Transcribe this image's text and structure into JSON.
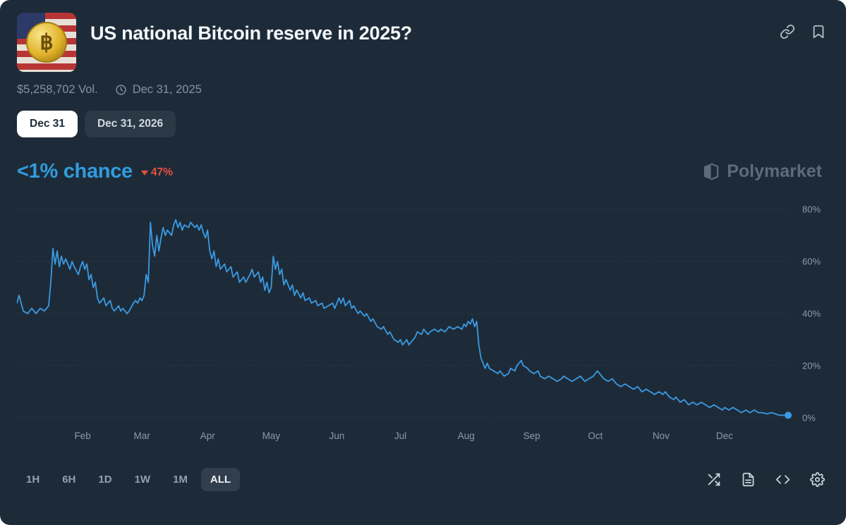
{
  "colors": {
    "background": "#1d2b39",
    "accent_blue": "#3b9ae1",
    "down_red": "#e8503f",
    "grid": "#35434f",
    "axis_text": "#8d9aa7",
    "watermark": "#5d6b7a"
  },
  "header": {
    "title": "US national Bitcoin reserve in 2025?",
    "coin_symbol": "฿",
    "action_icons": [
      "link-icon",
      "bookmark-icon"
    ]
  },
  "meta": {
    "volume": "$5,258,702 Vol.",
    "end_date": "Dec 31, 2025"
  },
  "outcome_tabs": [
    {
      "label": "Dec 31",
      "active": true
    },
    {
      "label": "Dec 31, 2026",
      "active": false
    }
  ],
  "chance": {
    "value": "<1% chance",
    "change": "47%",
    "direction": "down"
  },
  "watermark": {
    "label": "Polymarket"
  },
  "timeframes": [
    {
      "label": "1H",
      "active": false
    },
    {
      "label": "6H",
      "active": false
    },
    {
      "label": "1D",
      "active": false
    },
    {
      "label": "1W",
      "active": false
    },
    {
      "label": "1M",
      "active": false
    },
    {
      "label": "ALL",
      "active": true
    }
  ],
  "footer_icons": [
    "shuffle-icon",
    "news-icon",
    "code-icon",
    "settings-icon"
  ],
  "chart_data": {
    "type": "line",
    "title": "US national Bitcoin reserve in 2025? - chance over time",
    "grid": "dotted-horizontal",
    "legend": "none",
    "end_marker": true,
    "x_axis": {
      "unit": "day-of-year",
      "range": [
        0,
        364
      ],
      "ticks": [
        {
          "label": "Feb",
          "day": 31
        },
        {
          "label": "Mar",
          "day": 59
        },
        {
          "label": "Apr",
          "day": 90
        },
        {
          "label": "May",
          "day": 120
        },
        {
          "label": "Jun",
          "day": 151
        },
        {
          "label": "Jul",
          "day": 181
        },
        {
          "label": "Aug",
          "day": 212
        },
        {
          "label": "Sep",
          "day": 243
        },
        {
          "label": "Oct",
          "day": 273
        },
        {
          "label": "Nov",
          "day": 304
        },
        {
          "label": "Dec",
          "day": 334
        }
      ]
    },
    "y_axis": {
      "unit": "%",
      "range": [
        0,
        80
      ],
      "side": "right",
      "ticks": [
        {
          "v": 0,
          "label": "0%"
        },
        {
          "v": 20,
          "label": "20%"
        },
        {
          "v": 40,
          "label": "40%"
        },
        {
          "v": 60,
          "label": "60%"
        },
        {
          "v": 80,
          "label": "80%"
        }
      ]
    },
    "series": [
      {
        "name": "Dec 31",
        "color": "#3b9ae1",
        "points": [
          [
            0,
            44
          ],
          [
            1,
            47
          ],
          [
            3,
            41
          ],
          [
            5,
            40
          ],
          [
            7,
            42
          ],
          [
            9,
            40
          ],
          [
            11,
            42
          ],
          [
            13,
            41
          ],
          [
            15,
            43
          ],
          [
            16,
            52
          ],
          [
            17,
            65
          ],
          [
            18,
            59
          ],
          [
            19,
            64
          ],
          [
            20,
            58
          ],
          [
            21,
            62
          ],
          [
            22,
            59
          ],
          [
            23,
            61
          ],
          [
            25,
            57
          ],
          [
            26,
            60
          ],
          [
            27,
            58
          ],
          [
            29,
            55
          ],
          [
            30,
            58
          ],
          [
            31,
            60
          ],
          [
            32,
            57
          ],
          [
            33,
            59
          ],
          [
            34,
            53
          ],
          [
            35,
            55
          ],
          [
            36,
            50
          ],
          [
            37,
            52
          ],
          [
            38,
            46
          ],
          [
            39,
            44
          ],
          [
            41,
            46
          ],
          [
            42,
            43
          ],
          [
            44,
            45
          ],
          [
            45,
            42
          ],
          [
            46,
            41
          ],
          [
            48,
            43
          ],
          [
            49,
            41
          ],
          [
            50,
            42
          ],
          [
            52,
            40
          ],
          [
            53,
            41
          ],
          [
            55,
            44
          ],
          [
            56,
            45
          ],
          [
            57,
            44
          ],
          [
            58,
            46
          ],
          [
            59,
            45
          ],
          [
            60,
            47
          ],
          [
            61,
            55
          ],
          [
            62,
            52
          ],
          [
            63,
            75
          ],
          [
            64,
            66
          ],
          [
            65,
            62
          ],
          [
            66,
            70
          ],
          [
            67,
            64
          ],
          [
            68,
            69
          ],
          [
            69,
            73
          ],
          [
            70,
            70
          ],
          [
            71,
            72
          ],
          [
            73,
            70
          ],
          [
            74,
            74
          ],
          [
            75,
            76
          ],
          [
            76,
            73
          ],
          [
            77,
            75
          ],
          [
            78,
            72
          ],
          [
            79,
            74
          ],
          [
            81,
            73
          ],
          [
            82,
            75
          ],
          [
            84,
            73
          ],
          [
            85,
            74
          ],
          [
            86,
            72
          ],
          [
            87,
            74
          ],
          [
            88,
            71
          ],
          [
            89,
            69
          ],
          [
            90,
            72
          ],
          [
            91,
            64
          ],
          [
            92,
            61
          ],
          [
            93,
            64
          ],
          [
            94,
            58
          ],
          [
            95,
            61
          ],
          [
            96,
            57
          ],
          [
            98,
            59
          ],
          [
            99,
            56
          ],
          [
            101,
            58
          ],
          [
            102,
            54
          ],
          [
            104,
            56
          ],
          [
            105,
            52
          ],
          [
            107,
            54
          ],
          [
            108,
            52
          ],
          [
            110,
            55
          ],
          [
            111,
            57
          ],
          [
            112,
            54
          ],
          [
            114,
            56
          ],
          [
            115,
            52
          ],
          [
            116,
            54
          ],
          [
            117,
            49
          ],
          [
            118,
            52
          ],
          [
            119,
            48
          ],
          [
            120,
            50
          ],
          [
            121,
            62
          ],
          [
            122,
            57
          ],
          [
            123,
            60
          ],
          [
            124,
            55
          ],
          [
            125,
            57
          ],
          [
            126,
            51
          ],
          [
            127,
            53
          ],
          [
            129,
            49
          ],
          [
            130,
            51
          ],
          [
            131,
            47
          ],
          [
            132,
            49
          ],
          [
            134,
            46
          ],
          [
            135,
            48
          ],
          [
            136,
            45
          ],
          [
            138,
            46
          ],
          [
            139,
            44
          ],
          [
            141,
            45
          ],
          [
            142,
            43
          ],
          [
            144,
            44
          ],
          [
            145,
            42
          ],
          [
            147,
            43
          ],
          [
            149,
            44
          ],
          [
            150,
            42
          ],
          [
            151,
            44
          ],
          [
            152,
            46
          ],
          [
            153,
            44
          ],
          [
            154,
            46
          ],
          [
            155,
            43
          ],
          [
            157,
            45
          ],
          [
            158,
            42
          ],
          [
            159,
            43
          ],
          [
            161,
            40
          ],
          [
            162,
            41
          ],
          [
            164,
            39
          ],
          [
            165,
            40
          ],
          [
            167,
            37
          ],
          [
            168,
            38
          ],
          [
            170,
            35
          ],
          [
            172,
            34
          ],
          [
            173,
            35
          ],
          [
            175,
            32
          ],
          [
            176,
            33
          ],
          [
            178,
            30
          ],
          [
            180,
            29
          ],
          [
            181,
            30
          ],
          [
            182,
            28
          ],
          [
            184,
            30
          ],
          [
            185,
            28
          ],
          [
            186,
            29
          ],
          [
            188,
            31
          ],
          [
            189,
            33
          ],
          [
            191,
            32
          ],
          [
            192,
            34
          ],
          [
            194,
            32
          ],
          [
            195,
            33
          ],
          [
            197,
            34
          ],
          [
            199,
            33
          ],
          [
            200,
            34
          ],
          [
            202,
            33
          ],
          [
            204,
            35
          ],
          [
            206,
            34
          ],
          [
            208,
            35
          ],
          [
            210,
            34
          ],
          [
            211,
            36
          ],
          [
            212,
            35
          ],
          [
            213,
            37
          ],
          [
            214,
            36
          ],
          [
            215,
            38
          ],
          [
            216,
            35
          ],
          [
            217,
            37
          ],
          [
            218,
            28
          ],
          [
            219,
            23
          ],
          [
            220,
            21
          ],
          [
            221,
            19
          ],
          [
            222,
            21
          ],
          [
            223,
            19
          ],
          [
            225,
            18
          ],
          [
            227,
            17
          ],
          [
            228,
            18
          ],
          [
            230,
            16
          ],
          [
            232,
            17
          ],
          [
            233,
            19
          ],
          [
            235,
            18
          ],
          [
            236,
            20
          ],
          [
            237,
            21
          ],
          [
            238,
            22
          ],
          [
            239,
            20
          ],
          [
            241,
            19
          ],
          [
            242,
            18
          ],
          [
            244,
            17
          ],
          [
            246,
            18
          ],
          [
            247,
            16
          ],
          [
            249,
            15
          ],
          [
            251,
            16
          ],
          [
            253,
            15
          ],
          [
            255,
            14
          ],
          [
            257,
            15
          ],
          [
            258,
            16
          ],
          [
            260,
            15
          ],
          [
            262,
            14
          ],
          [
            264,
            15
          ],
          [
            266,
            16
          ],
          [
            268,
            14
          ],
          [
            270,
            15
          ],
          [
            272,
            16
          ],
          [
            273,
            17
          ],
          [
            274,
            18
          ],
          [
            276,
            16
          ],
          [
            277,
            15
          ],
          [
            279,
            14
          ],
          [
            281,
            15
          ],
          [
            283,
            13
          ],
          [
            285,
            12
          ],
          [
            287,
            13
          ],
          [
            289,
            12
          ],
          [
            291,
            11
          ],
          [
            293,
            12
          ],
          [
            295,
            10
          ],
          [
            297,
            11
          ],
          [
            299,
            10
          ],
          [
            301,
            9
          ],
          [
            303,
            10
          ],
          [
            305,
            9
          ],
          [
            306,
            10
          ],
          [
            308,
            8
          ],
          [
            310,
            7
          ],
          [
            311,
            8
          ],
          [
            313,
            6
          ],
          [
            315,
            7
          ],
          [
            317,
            5
          ],
          [
            319,
            6
          ],
          [
            321,
            5
          ],
          [
            323,
            6
          ],
          [
            325,
            5
          ],
          [
            327,
            4
          ],
          [
            329,
            5
          ],
          [
            331,
            4
          ],
          [
            333,
            3
          ],
          [
            334,
            4
          ],
          [
            336,
            3
          ],
          [
            338,
            4
          ],
          [
            340,
            3
          ],
          [
            342,
            2
          ],
          [
            344,
            3
          ],
          [
            346,
            2
          ],
          [
            348,
            3
          ],
          [
            350,
            2
          ],
          [
            352,
            2
          ],
          [
            354,
            1.5
          ],
          [
            356,
            2
          ],
          [
            358,
            1.5
          ],
          [
            360,
            1
          ],
          [
            362,
            1
          ],
          [
            364,
            1
          ]
        ]
      }
    ]
  }
}
